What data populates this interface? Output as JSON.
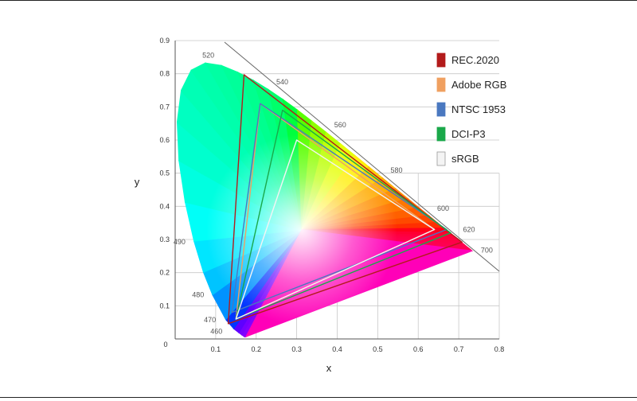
{
  "chart_data": {
    "type": "scatter",
    "xlabel": "x",
    "ylabel": "y",
    "xlim": [
      0,
      0.8
    ],
    "ylim": [
      0,
      0.9
    ],
    "x_ticks": [
      "0.1",
      "0.2",
      "0.3",
      "0.4",
      "0.5",
      "0.6",
      "0.7",
      "0.8"
    ],
    "y_ticks": [
      "0.1",
      "0.2",
      "0.3",
      "0.4",
      "0.5",
      "0.6",
      "0.7",
      "0.8",
      "0.9"
    ],
    "origin_label": "0",
    "grid": true,
    "legend_position": "top-right",
    "spectral_locus_labels": [
      {
        "label": "460",
        "x": 0.144,
        "y": 0.03
      },
      {
        "label": "470",
        "x": 0.124,
        "y": 0.058
      },
      {
        "label": "480",
        "x": 0.091,
        "y": 0.133
      },
      {
        "label": "490",
        "x": 0.045,
        "y": 0.295
      },
      {
        "label": "520",
        "x": 0.074,
        "y": 0.834
      },
      {
        "label": "540",
        "x": 0.23,
        "y": 0.754
      },
      {
        "label": "560",
        "x": 0.373,
        "y": 0.624
      },
      {
        "label": "580",
        "x": 0.512,
        "y": 0.487
      },
      {
        "label": "600",
        "x": 0.627,
        "y": 0.372
      },
      {
        "label": "620",
        "x": 0.691,
        "y": 0.308
      },
      {
        "label": "700",
        "x": 0.735,
        "y": 0.265
      }
    ],
    "series": [
      {
        "name": "REC.2020",
        "color": "#b31b1b",
        "points": [
          [
            0.708,
            0.292
          ],
          [
            0.17,
            0.797
          ],
          [
            0.131,
            0.046
          ]
        ]
      },
      {
        "name": "Adobe RGB",
        "color": "#f0a060",
        "points": [
          [
            0.64,
            0.33
          ],
          [
            0.21,
            0.71
          ],
          [
            0.15,
            0.06
          ]
        ]
      },
      {
        "name": "NTSC 1953",
        "color": "#4a78c0",
        "points": [
          [
            0.67,
            0.33
          ],
          [
            0.21,
            0.71
          ],
          [
            0.14,
            0.08
          ]
        ]
      },
      {
        "name": "DCI-P3",
        "color": "#1aa84a",
        "points": [
          [
            0.68,
            0.32
          ],
          [
            0.265,
            0.69
          ],
          [
            0.15,
            0.06
          ]
        ]
      },
      {
        "name": "sRGB",
        "color": "#f4f4f4",
        "points": [
          [
            0.64,
            0.33
          ],
          [
            0.3,
            0.6
          ],
          [
            0.15,
            0.06
          ]
        ]
      }
    ]
  }
}
